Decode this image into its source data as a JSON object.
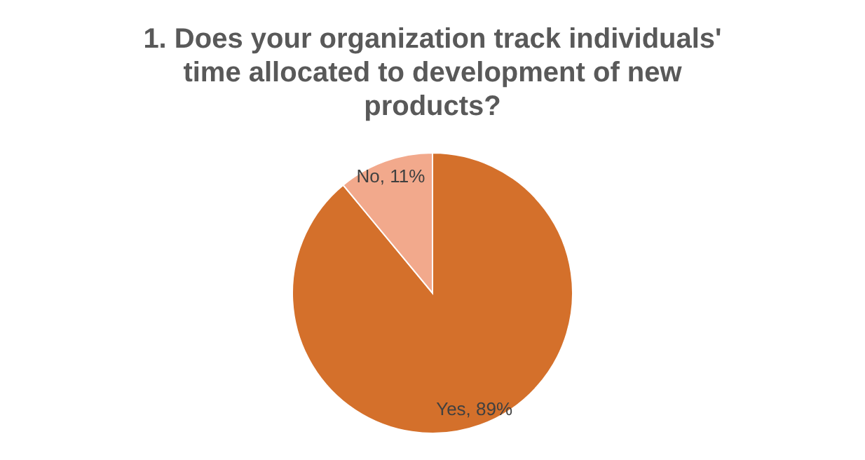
{
  "chart_data": {
    "type": "pie",
    "title": "1. Does your organization track individuals' time allocated to development of new products?",
    "categories": [
      "Yes",
      "No"
    ],
    "values": [
      89,
      11
    ],
    "colors": [
      "#d4702b",
      "#f2a98c"
    ],
    "value_labels": [
      "89%",
      "11%"
    ],
    "legend": false
  }
}
